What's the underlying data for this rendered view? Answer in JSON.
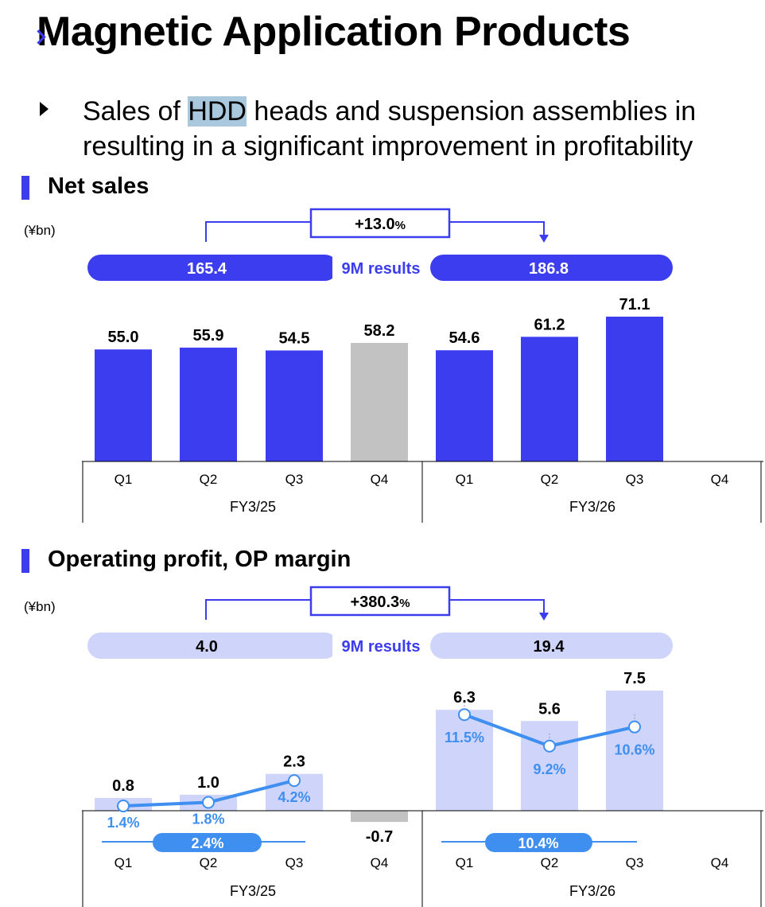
{
  "header": {
    "title": "Magnetic Application Products",
    "bullet": {
      "pre": "Sales of ",
      "highlight": "HDD",
      "post": " heads and suspension assemblies in",
      "line2": "resulting in a significant improvement in profitability"
    }
  },
  "sections": {
    "net_sales": {
      "title": "Net sales",
      "unit": "(¥bn)"
    },
    "op": {
      "title": "Operating profit, OP margin",
      "unit": "(¥bn)"
    }
  },
  "colors": {
    "primary": "#3d3df0",
    "light": "#cfd4fb",
    "gray": "#c2c2c2",
    "line": "#3f8ff0",
    "margin_text": "#3f8ff0"
  },
  "chart_data": [
    {
      "type": "bar",
      "title": "Net sales",
      "unit": "(¥bn)",
      "categories": [
        "Q1",
        "Q2",
        "Q3",
        "Q4",
        "Q1",
        "Q2",
        "Q3",
        "Q4"
      ],
      "groups": [
        "FY3/25",
        "FY3/26"
      ],
      "values": [
        55.0,
        55.9,
        54.5,
        58.2,
        54.6,
        61.2,
        71.1,
        null
      ],
      "labels": [
        "55.0",
        "55.9",
        "54.5",
        "58.2",
        "54.6",
        "61.2",
        "71.1",
        ""
      ],
      "bar_style": [
        "dark",
        "dark",
        "dark",
        "gray",
        "dark",
        "dark",
        "dark",
        "none"
      ],
      "ylim": [
        0,
        71.1
      ],
      "nine_month": {
        "label": "9M results",
        "prev": "165.4",
        "curr": "186.8",
        "change": "+13.0",
        "pct": "%"
      }
    },
    {
      "type": "bar",
      "title": "Operating profit, OP margin",
      "unit": "(¥bn)",
      "categories": [
        "Q1",
        "Q2",
        "Q3",
        "Q4",
        "Q1",
        "Q2",
        "Q3",
        "Q4"
      ],
      "groups": [
        "FY3/25",
        "FY3/26"
      ],
      "values": [
        0.8,
        1.0,
        2.3,
        -0.7,
        6.3,
        5.6,
        7.5,
        null
      ],
      "labels": [
        "0.8",
        "1.0",
        "2.3",
        "-0.7",
        "6.3",
        "5.6",
        "7.5",
        ""
      ],
      "bar_style": [
        "light",
        "light",
        "light",
        "gray",
        "light",
        "light",
        "light",
        "none"
      ],
      "ylim": [
        -0.7,
        7.5
      ],
      "op_margin": {
        "fy25": {
          "values": [
            1.4,
            1.8,
            4.2
          ],
          "labels": [
            "1.4%",
            "1.8%",
            "4.2%"
          ],
          "avg": "2.4%"
        },
        "fy26": {
          "values": [
            11.5,
            9.2,
            10.6
          ],
          "labels": [
            "11.5%",
            "9.2%",
            "10.6%"
          ],
          "avg": "10.4%"
        }
      },
      "nine_month": {
        "label": "9M results",
        "prev": "4.0",
        "curr": "19.4",
        "change": "+380.3",
        "pct": "%"
      }
    }
  ]
}
